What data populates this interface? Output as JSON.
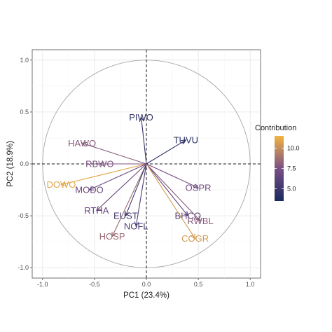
{
  "chart_data": {
    "type": "biplot",
    "title": "",
    "xlabel": "PC1 (23.4%)",
    "ylabel": "PC2 (18.9%)",
    "xlim": [
      -1.1,
      1.1
    ],
    "ylim": [
      -1.1,
      1.1
    ],
    "xticks": [
      -1.0,
      -0.5,
      0.0,
      0.5,
      1.0
    ],
    "yticks": [
      -1.0,
      -0.5,
      0.0,
      0.5,
      1.0
    ],
    "xtick_labels": [
      "-1.0",
      "-0.5",
      "0.0",
      "0.5",
      "1.0"
    ],
    "ytick_labels": [
      "-1.0",
      "-0.5",
      "0.0",
      "0.5",
      "1.0"
    ],
    "grid": true,
    "unit_circle": true,
    "reference_lines": "dashed at x=0 and y=0",
    "color_scale": {
      "title": "Contribution",
      "min": 3.5,
      "max": 11.5,
      "ticks": [
        5.0,
        7.5,
        10.0
      ],
      "tick_labels": [
        "5.0",
        "7.5",
        "10.0"
      ],
      "low_color": "#1a2a5e",
      "mid_color": "#7a4f86",
      "high_color": "#f2b441"
    },
    "legend_position": "right",
    "variables": [
      {
        "name": "PIWO",
        "x": -0.05,
        "y": 0.45,
        "contribution": 4.5
      },
      {
        "name": "TUVU",
        "x": 0.38,
        "y": 0.23,
        "contribution": 4.2
      },
      {
        "name": "HAWO",
        "x": -0.62,
        "y": 0.2,
        "contribution": 8.0
      },
      {
        "name": "RBWO",
        "x": -0.45,
        "y": 0.0,
        "contribution": 7.6
      },
      {
        "name": "DOWO",
        "x": -0.82,
        "y": -0.2,
        "contribution": 11.0
      },
      {
        "name": "MODO",
        "x": -0.55,
        "y": -0.25,
        "contribution": 7.0
      },
      {
        "name": "RTHA",
        "x": -0.48,
        "y": -0.45,
        "contribution": 6.8
      },
      {
        "name": "HOSP",
        "x": -0.33,
        "y": -0.7,
        "contribution": 8.6
      },
      {
        "name": "EUST",
        "x": -0.2,
        "y": -0.5,
        "contribution": 5.2
      },
      {
        "name": "NOFL",
        "x": -0.1,
        "y": -0.6,
        "contribution": 5.6
      },
      {
        "name": "BHCO",
        "x": 0.4,
        "y": -0.5,
        "contribution": 6.2
      },
      {
        "name": "RWBL",
        "x": 0.52,
        "y": -0.55,
        "contribution": 8.0
      },
      {
        "name": "COGR",
        "x": 0.47,
        "y": -0.72,
        "contribution": 10.5
      },
      {
        "name": "OSPR",
        "x": 0.5,
        "y": -0.23,
        "contribution": 7.2
      }
    ]
  }
}
